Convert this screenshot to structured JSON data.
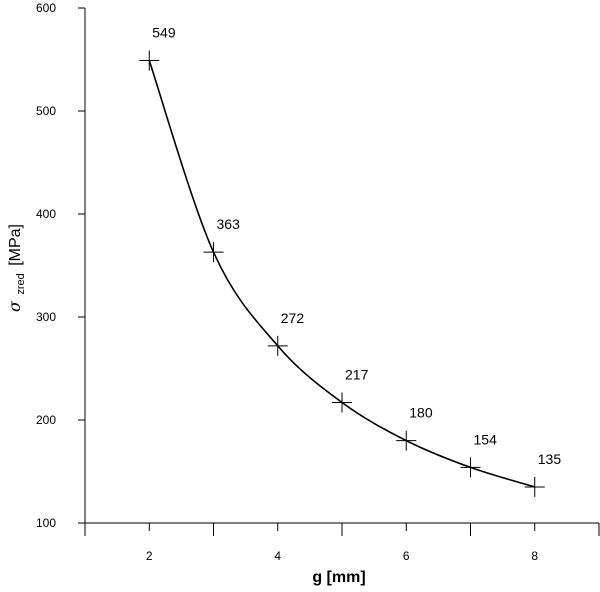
{
  "chart_data": {
    "type": "line",
    "title": "",
    "xlabel": "g [mm]",
    "ylabel": {
      "symbol": "σ",
      "subscript": "zred",
      "unit": "[MPa]"
    },
    "xlim": [
      1,
      9
    ],
    "ylim": [
      100,
      600
    ],
    "x_ticks": [
      2,
      4,
      6,
      8
    ],
    "x_minor_ticks": [
      1,
      3,
      5,
      7,
      9
    ],
    "y_ticks": [
      100,
      200,
      300,
      400,
      500,
      600
    ],
    "grid": false,
    "legend": "none",
    "marker": "plus",
    "series": [
      {
        "x": [
          2,
          3,
          4,
          5,
          6,
          7,
          8
        ],
        "y": [
          549,
          363,
          272,
          217,
          180,
          154,
          135
        ],
        "labels": [
          "549",
          "363",
          "272",
          "217",
          "180",
          "154",
          "135"
        ],
        "color": "#000000"
      }
    ]
  }
}
